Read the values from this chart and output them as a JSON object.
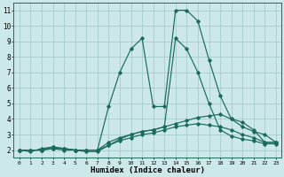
{
  "xlabel": "Humidex (Indice chaleur)",
  "bg_color": "#cce8e8",
  "grid_color": "#aacccc",
  "line_color": "#1a6b5a",
  "xlim": [
    -0.5,
    23.5
  ],
  "ylim": [
    1.5,
    11.5
  ],
  "xticks": [
    0,
    1,
    2,
    3,
    4,
    5,
    6,
    7,
    8,
    9,
    10,
    11,
    12,
    13,
    14,
    15,
    16,
    17,
    18,
    19,
    20,
    21,
    22,
    23
  ],
  "yticks": [
    2,
    3,
    4,
    5,
    6,
    7,
    8,
    9,
    10,
    11
  ],
  "series": [
    [
      2.0,
      1.9,
      2.1,
      2.2,
      2.1,
      2.0,
      2.0,
      2.0,
      4.8,
      7.0,
      8.5,
      9.2,
      4.8,
      4.8,
      11.0,
      11.0,
      10.3,
      7.8,
      5.5,
      4.0,
      3.5,
      3.2,
      3.0,
      2.5
    ],
    [
      2.0,
      2.0,
      2.0,
      2.2,
      2.1,
      2.0,
      2.0,
      2.0,
      2.5,
      2.8,
      3.0,
      3.2,
      3.3,
      3.5,
      3.7,
      3.9,
      4.1,
      4.2,
      4.3,
      4.0,
      3.8,
      3.3,
      2.5,
      2.5
    ],
    [
      2.0,
      2.0,
      2.0,
      2.1,
      2.1,
      2.0,
      2.0,
      2.0,
      2.3,
      2.6,
      2.8,
      3.0,
      3.1,
      3.3,
      3.5,
      3.6,
      3.7,
      3.6,
      3.5,
      3.3,
      3.0,
      2.8,
      2.5,
      2.5
    ],
    [
      2.0,
      2.0,
      2.0,
      2.1,
      2.0,
      2.0,
      1.9,
      1.9,
      2.3,
      2.7,
      3.0,
      3.2,
      3.3,
      3.5,
      9.2,
      8.5,
      7.0,
      5.0,
      3.3,
      2.9,
      2.7,
      2.6,
      2.4,
      2.4
    ]
  ]
}
